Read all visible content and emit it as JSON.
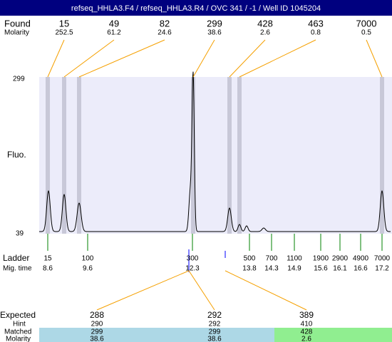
{
  "header": {
    "title": "refseq_HHLA3.F4 / refseq_HHLA3.R4 / OVC 341 / -1 / Well ID 1045204"
  },
  "found": {
    "label": "Found",
    "molarity_label": "Molarity",
    "sizes": [
      "15",
      "49",
      "82",
      "299",
      "428",
      "463",
      "7000"
    ],
    "molarity": [
      "252.5",
      "61.2",
      "24.6",
      "38.6",
      "2.6",
      "0.8",
      "0.5"
    ]
  },
  "plot": {
    "y_label": "Fluo.",
    "y_top": "299",
    "y_bottom": "39"
  },
  "ladder": {
    "label": "Ladder",
    "time_label": "Mig. time",
    "sizes": [
      "15",
      "100",
      "300",
      "500",
      "700",
      "1100",
      "1900",
      "2900",
      "4900",
      "7000"
    ],
    "times": [
      "8.6",
      "9.6",
      "12.3",
      "13.8",
      "14.3",
      "14.9",
      "15.6",
      "16.1",
      "16.6",
      "17.2"
    ]
  },
  "expected": {
    "label": "Expected",
    "hint_label": "Hint",
    "matched_label": "Matched",
    "molarity_label": "Molarity",
    "expected": [
      "288",
      "292",
      "389"
    ],
    "hint": [
      "290",
      "292",
      "410"
    ],
    "matched": [
      "299",
      "299",
      "428"
    ],
    "molarity": [
      "38.6",
      "38.6",
      "2.6"
    ]
  }
}
